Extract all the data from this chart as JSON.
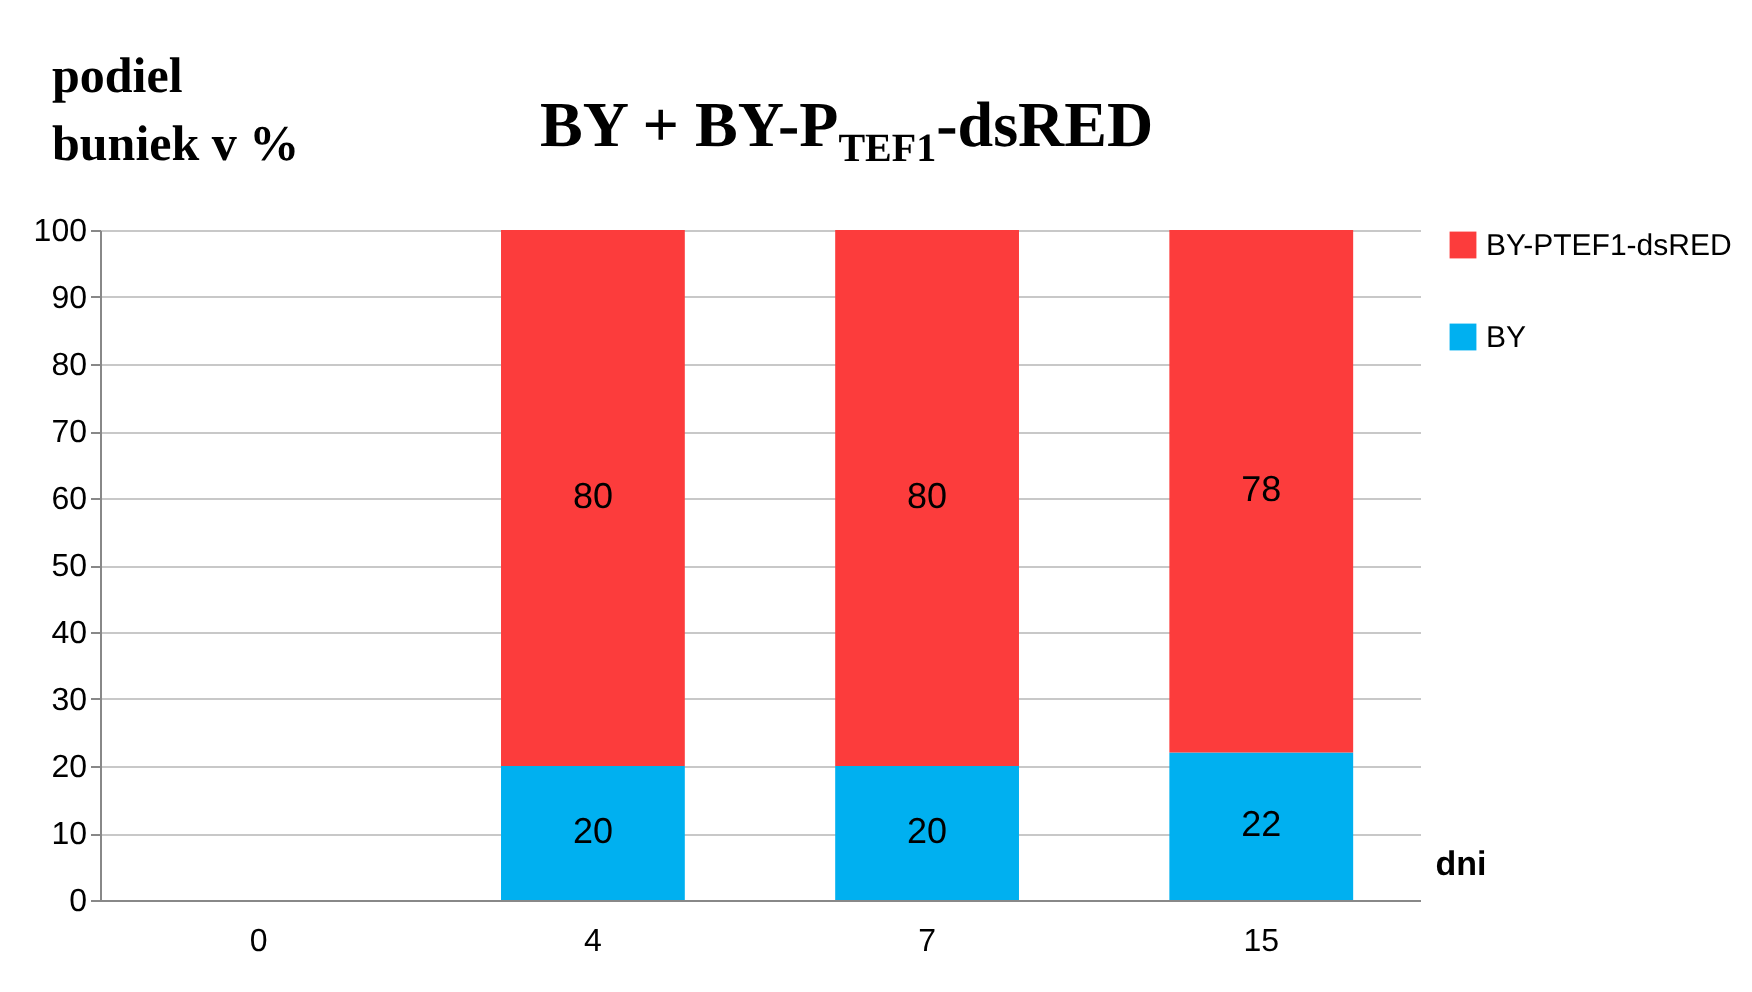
{
  "chart_data": {
    "type": "bar",
    "title": "BY + BY-P$_{TEF1}$-dsRED",
    "ylabel": "podiel buniek v %",
    "xlabel": "dni",
    "categories": [
      "0",
      "4",
      "7",
      "15"
    ],
    "series": [
      {
        "name": "BY",
        "color": "#00b0f0",
        "values": [
          null,
          20,
          20,
          22
        ]
      },
      {
        "name": "BY-PTEF1-dsRED",
        "color": "#fc3c3c",
        "values": [
          null,
          80,
          80,
          78
        ]
      }
    ],
    "stacked": true,
    "data_labels": true,
    "ylim": [
      0,
      100
    ],
    "yticks": [
      0,
      10,
      20,
      30,
      40,
      50,
      60,
      70,
      80,
      90,
      100
    ],
    "grid": "y",
    "legend": "right"
  }
}
